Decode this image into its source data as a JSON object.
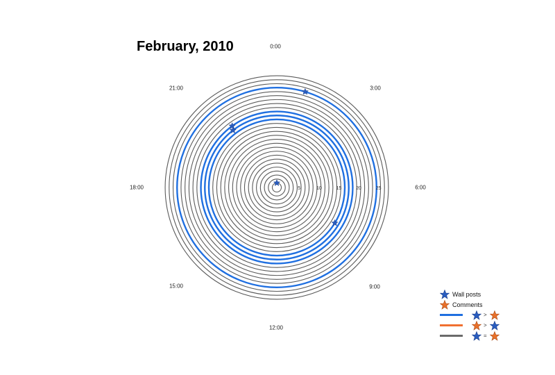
{
  "title": "February, 2010",
  "hour_labels": [
    "0:00",
    "3:00",
    "6:00",
    "9:00",
    "12:00",
    "15:00",
    "18:00",
    "21:00"
  ],
  "colors": {
    "ring": "#5a5a5a",
    "blue": "#1f6fe0",
    "orange": "#f07030",
    "gray": "#6a6a6a",
    "star_blue": "#2a5dbf",
    "star_orange": "#e8702a"
  },
  "chart_data": {
    "type": "polar-spiral",
    "title": "February, 2010",
    "angular_axis": {
      "labels": [
        "0:00",
        "3:00",
        "6:00",
        "9:00",
        "12:00",
        "15:00",
        "18:00",
        "21:00"
      ],
      "unit": "hour of day"
    },
    "radial_axis": {
      "tick_labels": [
        "5",
        "10",
        "15",
        "20",
        "25"
      ],
      "range": [
        0,
        28
      ]
    },
    "rings": {
      "count": 28,
      "highlighted_blue": [
        16,
        17,
        18,
        24
      ]
    },
    "wall_posts": [
      {
        "ring": 0,
        "hour": 0.0
      },
      {
        "ring": 18,
        "hour": 21.6
      },
      {
        "ring": 17,
        "hour": 21.5
      },
      {
        "ring": 24,
        "hour": 1.1
      },
      {
        "ring": 16,
        "hour": 8.1
      }
    ],
    "legend": [
      {
        "symbol": "star-blue",
        "label": "Wall posts"
      },
      {
        "symbol": "star-orange",
        "label": "Comments"
      },
      {
        "symbol": "line-blue",
        "relation": ">",
        "left": "star-blue",
        "right": "star-orange"
      },
      {
        "symbol": "line-orange",
        "relation": ">",
        "left": "star-orange",
        "right": "star-blue"
      },
      {
        "symbol": "line-gray",
        "relation": "=",
        "left": "star-blue",
        "right": "star-orange"
      }
    ]
  },
  "legend": {
    "wall_posts": "Wall posts",
    "comments": "Comments",
    "gt": ">",
    "eq": "="
  }
}
